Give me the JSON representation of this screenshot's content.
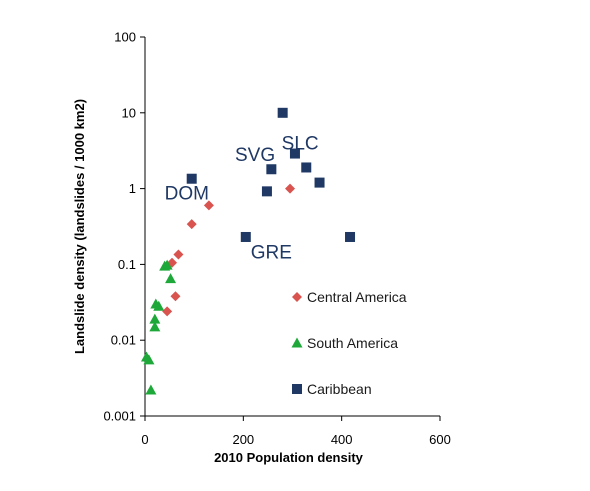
{
  "chart_data": {
    "type": "scatter",
    "title": "",
    "xlabel": "2010 Population density",
    "ylabel": "Landslide density (landslides / 1000 km2)",
    "xlim": [
      0,
      600
    ],
    "ylim": [
      0.001,
      100
    ],
    "yscale": "log",
    "x_ticks": [
      0,
      200,
      400,
      600
    ],
    "x_tick_labels": [
      "0",
      "200",
      "400",
      "600"
    ],
    "y_ticks": [
      0.001,
      0.01,
      0.1,
      1,
      10,
      100
    ],
    "y_tick_labels": [
      "0.001",
      "0.01",
      "0.1",
      "1",
      "10",
      "100"
    ],
    "grid": false,
    "legend_position": "bottom-right",
    "series": [
      {
        "name": "Central America",
        "color": "#d9534f",
        "marker": "diamond",
        "points": [
          {
            "x": 45,
            "y": 0.024
          },
          {
            "x": 55,
            "y": 0.105
          },
          {
            "x": 62,
            "y": 0.038
          },
          {
            "x": 68,
            "y": 0.135
          },
          {
            "x": 95,
            "y": 0.34
          },
          {
            "x": 130,
            "y": 0.6
          },
          {
            "x": 295,
            "y": 1.0
          }
        ]
      },
      {
        "name": "South America",
        "color": "#1fa83a",
        "marker": "triangle",
        "points": [
          {
            "x": 3,
            "y": 0.006
          },
          {
            "x": 8,
            "y": 0.0055
          },
          {
            "x": 12,
            "y": 0.0022
          },
          {
            "x": 20,
            "y": 0.015
          },
          {
            "x": 20,
            "y": 0.019
          },
          {
            "x": 22,
            "y": 0.03
          },
          {
            "x": 28,
            "y": 0.028
          },
          {
            "x": 40,
            "y": 0.095
          },
          {
            "x": 45,
            "y": 0.098
          },
          {
            "x": 52,
            "y": 0.065
          }
        ]
      },
      {
        "name": "Caribbean",
        "color": "#1f3864",
        "marker": "square",
        "points": [
          {
            "x": 95,
            "y": 1.35
          },
          {
            "x": 205,
            "y": 0.23
          },
          {
            "x": 248,
            "y": 0.92
          },
          {
            "x": 257,
            "y": 1.8
          },
          {
            "x": 280,
            "y": 10.0
          },
          {
            "x": 305,
            "y": 2.9
          },
          {
            "x": 328,
            "y": 1.9
          },
          {
            "x": 355,
            "y": 1.2
          },
          {
            "x": 417,
            "y": 0.23
          }
        ]
      }
    ],
    "annotations": [
      {
        "text": "DOM",
        "x": 40,
        "y": 0.72
      },
      {
        "text": "SVG",
        "x": 183,
        "y": 2.3
      },
      {
        "text": "SLC",
        "x": 278,
        "y": 3.3
      },
      {
        "text": "GRE",
        "x": 215,
        "y": 0.12
      }
    ]
  }
}
